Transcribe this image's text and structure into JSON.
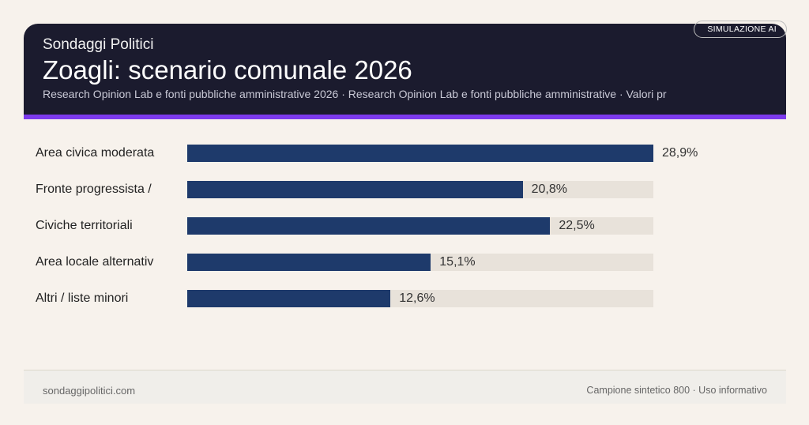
{
  "header": {
    "brand": "Sondaggi Politici",
    "title": "Zoagli: scenario comunale 2026",
    "subtitle": "Research Opinion Lab e fonti pubbliche amministrative 2026 · Research Opinion Lab e fonti pubbliche amministrative · Valori pr",
    "badge": "SIMULAZIONE AI"
  },
  "colors": {
    "bar": "#1e3a6b",
    "track": "#e8e2da",
    "header": "#1b1b2e",
    "accent": "#7c3aed"
  },
  "chart_data": {
    "type": "bar",
    "orientation": "horizontal",
    "categories": [
      "Area civica moderata",
      "Fronte progressista /",
      "Civiche territoriali",
      "Area locale alternativ",
      "Altri / liste minori"
    ],
    "values": [
      28.9,
      20.8,
      22.5,
      15.1,
      12.6
    ],
    "value_labels": [
      "28,9%",
      "20,8%",
      "22,5%",
      "15,1%",
      "12,6%"
    ],
    "xlim": [
      0,
      28.9
    ],
    "grid": false
  },
  "footer": {
    "left": "sondaggipolitici.com",
    "right": "Campione sintetico 800 · Uso informativo"
  }
}
